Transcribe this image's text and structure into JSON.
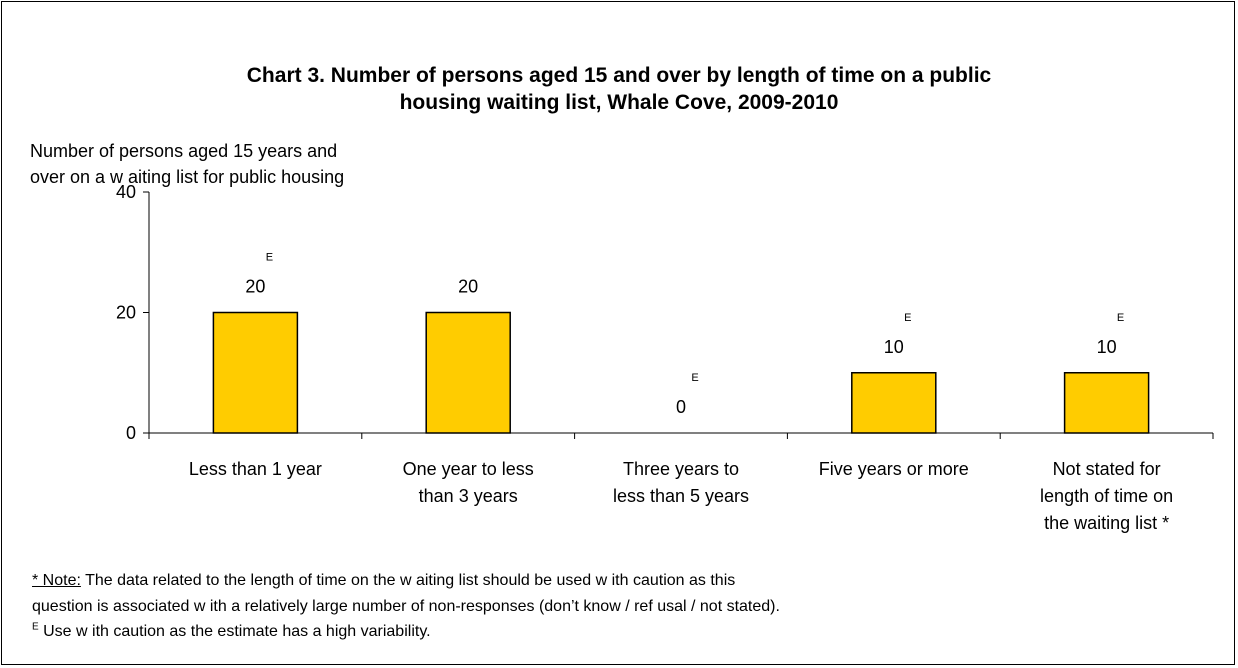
{
  "chart_data": {
    "type": "bar",
    "title_lines": [
      "Chart 3. Number of persons aged 15 and over by length of time on a public",
      "housing waiting list, Whale Cove, 2009-2010"
    ],
    "ylabel_lines": [
      "Number of persons aged 15 years and",
      "over on a w aiting list for public housing"
    ],
    "xlabel": "",
    "ylim": [
      0,
      40
    ],
    "yticks": [
      0,
      20,
      40
    ],
    "categories": [
      [
        "Less than 1 year"
      ],
      [
        "One year to less",
        "than 3 years"
      ],
      [
        "Three years to",
        "less than 5 years"
      ],
      [
        "Five years or more"
      ],
      [
        "Not stated for",
        "length of time on",
        "the waiting list *"
      ]
    ],
    "values": [
      20,
      20,
      0,
      10,
      10
    ],
    "data_labels": [
      "20",
      "20",
      "0",
      "10",
      "10"
    ],
    "flags": [
      "E",
      "",
      "E",
      "E",
      "E"
    ],
    "bar_color": "#FFCC00",
    "bar_stroke": "#000000",
    "legend": "none",
    "grid": false
  },
  "notes": {
    "note_marker": "* Note:",
    "note_line1": " The data related to the length of time on the w aiting list should be used w ith caution as this",
    "note_line2": "question is associated w ith a relatively large number of non-responses (don’t know / ref usal / not stated).",
    "e_marker": "E",
    "e_text": " Use w ith caution as the estimate has a high variability."
  }
}
